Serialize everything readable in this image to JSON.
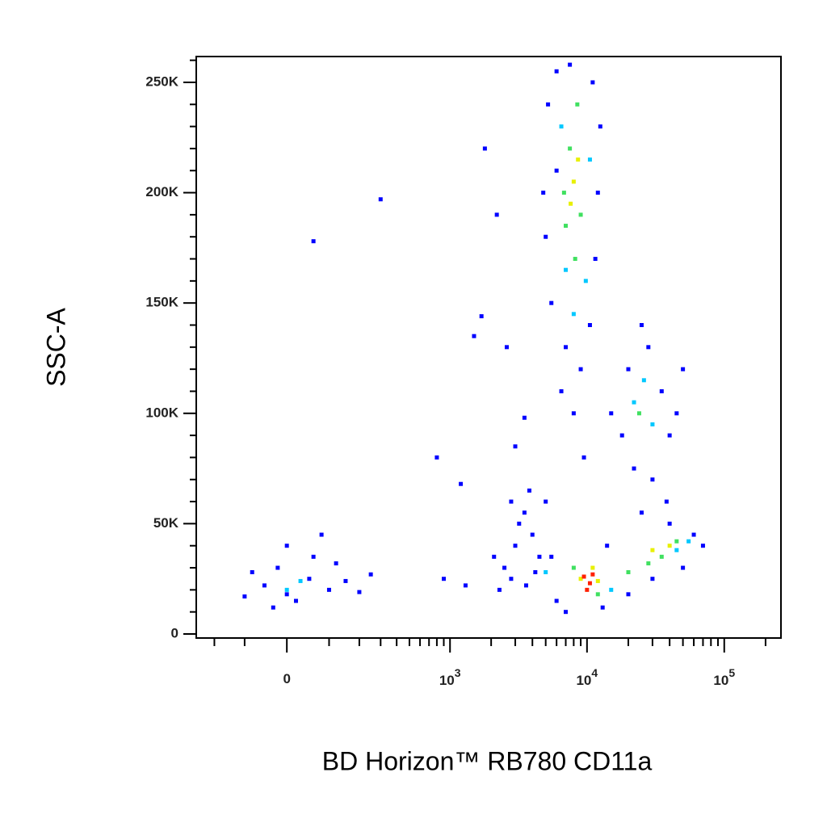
{
  "chart_data": {
    "type": "scatter",
    "x_label": "BD Horizon™ RB780  CD11a",
    "y_label": "SSC-A",
    "xscale": "biexponential",
    "xlim": [
      -283,
      259000
    ],
    "ylim": [
      -1830,
      261700
    ],
    "xticks": [
      {
        "value": 0,
        "label": "0"
      },
      {
        "value": 1000,
        "label": "10",
        "sup": "3"
      },
      {
        "value": 10000,
        "label": "10",
        "sup": "4"
      },
      {
        "value": 100000,
        "label": "10",
        "sup": "5"
      }
    ],
    "xminorticks": [
      -200,
      -100,
      100,
      200,
      300,
      400,
      500,
      600,
      700,
      800,
      900,
      2000,
      3000,
      4000,
      5000,
      6000,
      7000,
      8000,
      9000,
      20000,
      30000,
      40000,
      50000,
      60000,
      70000,
      80000,
      90000,
      200000
    ],
    "yticks": [
      {
        "value": 0,
        "label": "0"
      },
      {
        "value": 50000,
        "label": "50K"
      },
      {
        "value": 100000,
        "label": "100K"
      },
      {
        "value": 150000,
        "label": "150K"
      },
      {
        "value": 200000,
        "label": "200K"
      },
      {
        "value": 250000,
        "label": "250K"
      }
    ],
    "yminorticks": [
      10000,
      20000,
      30000,
      40000,
      60000,
      70000,
      80000,
      90000,
      110000,
      120000,
      130000,
      140000,
      160000,
      170000,
      180000,
      190000,
      210000,
      220000,
      230000,
      240000,
      260000
    ],
    "series": [
      {
        "color": "#0000ff",
        "x": [
          -50,
          0,
          50,
          -80,
          100,
          20,
          -20,
          150,
          -100,
          60,
          200,
          0,
          250,
          -30,
          120,
          80,
          300,
          60,
          1800,
          2200,
          1500,
          1700,
          2600,
          3000,
          1200,
          800,
          2800,
          900,
          1300,
          2100,
          3500,
          2500,
          3000,
          3500,
          4000,
          2800,
          4500,
          3200,
          3800,
          4200,
          5000,
          2300,
          3600,
          5200,
          6000,
          7500,
          11000,
          12000,
          5000,
          5500,
          7000,
          9000,
          10500,
          11500,
          6000,
          4800,
          12500,
          8000,
          9500,
          6500,
          18000,
          20000,
          28000,
          35000,
          40000,
          22000,
          30000,
          45000,
          25000,
          38000,
          50000,
          15000,
          6000,
          7000,
          13000,
          20000,
          30000,
          50000,
          60000,
          40000,
          5500,
          14000,
          70000,
          25000
        ],
        "values": [
          22000,
          18000,
          25000,
          28000,
          20000,
          15000,
          30000,
          24000,
          17000,
          35000,
          19000,
          40000,
          27000,
          12000,
          32000,
          45000,
          197000,
          178000,
          220000,
          190000,
          135000,
          144000,
          130000,
          85000,
          68000,
          80000,
          60000,
          25000,
          22000,
          35000,
          98000,
          30000,
          40000,
          55000,
          45000,
          25000,
          35000,
          50000,
          65000,
          28000,
          60000,
          20000,
          22000,
          240000,
          255000,
          258000,
          250000,
          200000,
          180000,
          150000,
          130000,
          120000,
          140000,
          170000,
          210000,
          200000,
          230000,
          100000,
          80000,
          110000,
          90000,
          120000,
          130000,
          110000,
          90000,
          75000,
          70000,
          100000,
          140000,
          60000,
          120000,
          100000,
          15000,
          10000,
          12000,
          18000,
          25000,
          30000,
          45000,
          50000,
          35000,
          40000,
          40000,
          55000
        ]
      },
      {
        "color": "#00c8ff",
        "x": [
          0,
          30,
          6500,
          10500,
          7000,
          9800,
          22000,
          30000,
          26000,
          5000,
          15000,
          45000,
          55000,
          8000
        ],
        "values": [
          20000,
          24000,
          230000,
          215000,
          165000,
          160000,
          105000,
          95000,
          115000,
          28000,
          20000,
          38000,
          42000,
          145000
        ]
      },
      {
        "color": "#40e060",
        "x": [
          7500,
          8500,
          9000,
          7000,
          8200,
          6800,
          24000,
          8000,
          12000,
          20000,
          35000,
          45000,
          28000
        ],
        "values": [
          220000,
          240000,
          190000,
          185000,
          170000,
          200000,
          100000,
          30000,
          18000,
          28000,
          35000,
          42000,
          32000
        ]
      },
      {
        "color": "#e8f000",
        "x": [
          8000,
          8600,
          7600,
          9000,
          12000,
          11000,
          30000,
          40000
        ],
        "values": [
          205000,
          215000,
          195000,
          25000,
          24000,
          30000,
          38000,
          40000
        ]
      },
      {
        "color": "#ff2000",
        "x": [
          9500,
          10500,
          10000,
          11000
        ],
        "values": [
          26000,
          23000,
          20000,
          27000
        ]
      }
    ]
  }
}
